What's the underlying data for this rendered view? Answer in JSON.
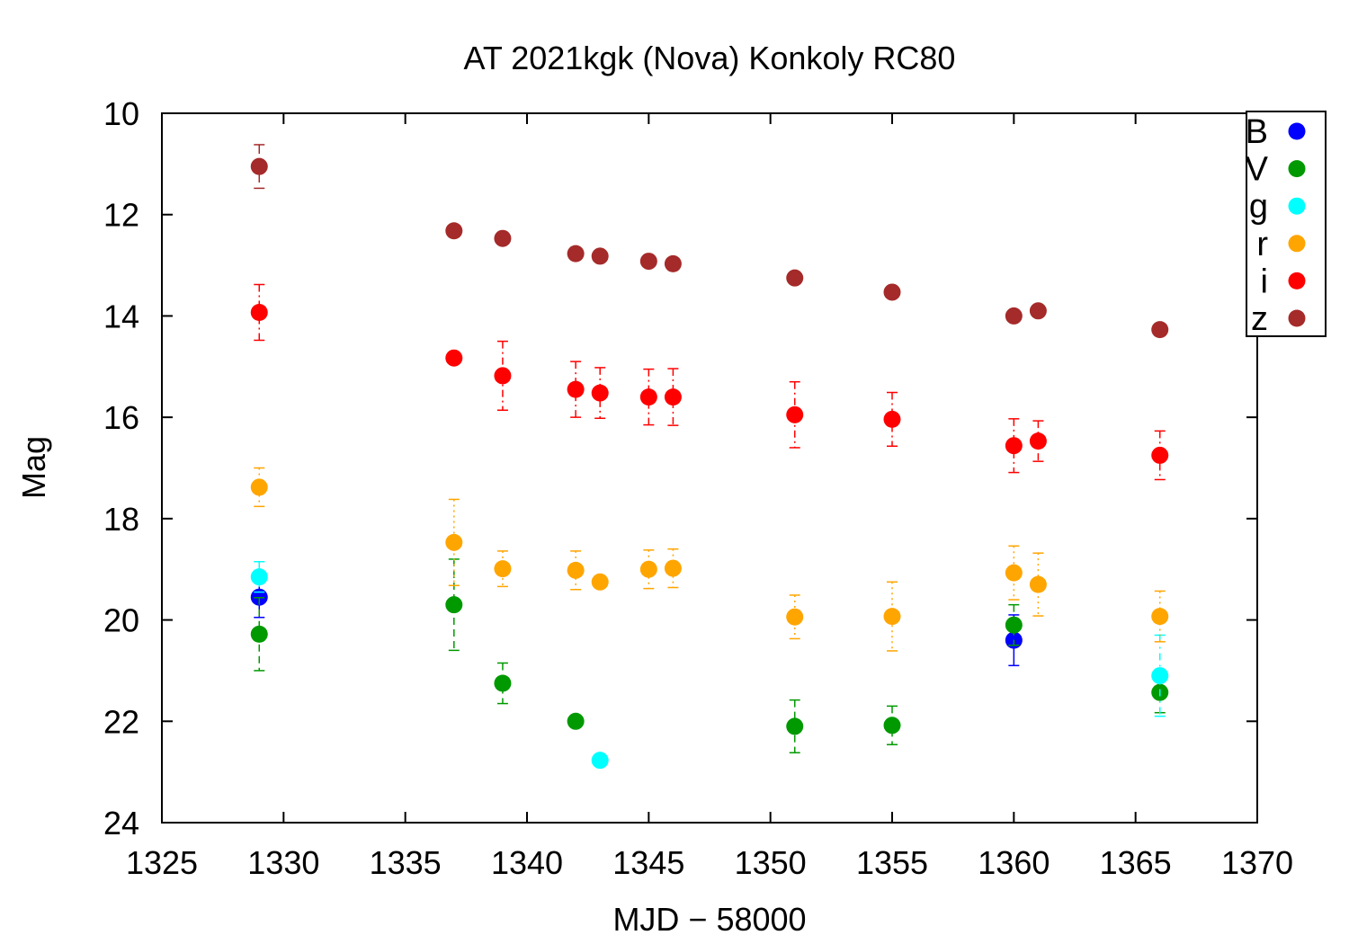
{
  "chart_data": {
    "type": "scatter",
    "title": "AT 2021kgk (Nova) Konkoly RC80",
    "xlabel": "MJD − 58000",
    "ylabel": "Mag",
    "xlim": [
      1325,
      1370
    ],
    "ylim": [
      10,
      24
    ],
    "y_inverted": true,
    "x_ticks": [
      1325,
      1330,
      1335,
      1340,
      1345,
      1350,
      1355,
      1360,
      1365,
      1370
    ],
    "y_ticks": [
      10,
      12,
      14,
      16,
      18,
      20,
      22,
      24
    ],
    "grid": false,
    "legend_position": "top-right",
    "series": [
      {
        "name": "B",
        "color": "#0000ff",
        "points": [
          {
            "x": 1329,
            "y": 19.55,
            "err": 0.4
          },
          {
            "x": 1360,
            "y": 20.4,
            "err": 0.5
          }
        ]
      },
      {
        "name": "V",
        "color": "#009900",
        "points": [
          {
            "x": 1329,
            "y": 20.28,
            "err": 0.72
          },
          {
            "x": 1337,
            "y": 19.7,
            "err": 0.9
          },
          {
            "x": 1339,
            "y": 21.25,
            "err": 0.4
          },
          {
            "x": 1342,
            "y": 22.0,
            "err": 0.1
          },
          {
            "x": 1351,
            "y": 22.1,
            "err": 0.52
          },
          {
            "x": 1355,
            "y": 22.08,
            "err": 0.38
          },
          {
            "x": 1360,
            "y": 20.1,
            "err": 0.4
          },
          {
            "x": 1366,
            "y": 21.43,
            "err": 0.4
          }
        ]
      },
      {
        "name": "g",
        "color": "#00ffff",
        "points": [
          {
            "x": 1329,
            "y": 19.15,
            "err": 0.3
          },
          {
            "x": 1343,
            "y": 22.77,
            "err": 0.05
          },
          {
            "x": 1366,
            "y": 21.1,
            "err": 0.8
          }
        ]
      },
      {
        "name": "r",
        "color": "#ffa500",
        "points": [
          {
            "x": 1329,
            "y": 17.38,
            "err": 0.38
          },
          {
            "x": 1337,
            "y": 18.47,
            "err": 0.85
          },
          {
            "x": 1339,
            "y": 18.99,
            "err": 0.35
          },
          {
            "x": 1342,
            "y": 19.02,
            "err": 0.38
          },
          {
            "x": 1343,
            "y": 19.25,
            "err": 0.1
          },
          {
            "x": 1345,
            "y": 19.0,
            "err": 0.38
          },
          {
            "x": 1346,
            "y": 18.98,
            "err": 0.38
          },
          {
            "x": 1351,
            "y": 19.94,
            "err": 0.43
          },
          {
            "x": 1355,
            "y": 19.93,
            "err": 0.68
          },
          {
            "x": 1360,
            "y": 19.07,
            "err": 0.53
          },
          {
            "x": 1361,
            "y": 19.3,
            "err": 0.62
          },
          {
            "x": 1366,
            "y": 19.93,
            "err": 0.5
          }
        ]
      },
      {
        "name": "i",
        "color": "#ff0000",
        "points": [
          {
            "x": 1329,
            "y": 13.93,
            "err": 0.55
          },
          {
            "x": 1337,
            "y": 14.83,
            "err": 0.05
          },
          {
            "x": 1339,
            "y": 15.18,
            "err": 0.68
          },
          {
            "x": 1342,
            "y": 15.45,
            "err": 0.55
          },
          {
            "x": 1343,
            "y": 15.52,
            "err": 0.5
          },
          {
            "x": 1345,
            "y": 15.6,
            "err": 0.55
          },
          {
            "x": 1346,
            "y": 15.6,
            "err": 0.56
          },
          {
            "x": 1351,
            "y": 15.95,
            "err": 0.65
          },
          {
            "x": 1355,
            "y": 16.04,
            "err": 0.53
          },
          {
            "x": 1360,
            "y": 16.56,
            "err": 0.53
          },
          {
            "x": 1361,
            "y": 16.47,
            "err": 0.4
          },
          {
            "x": 1366,
            "y": 16.75,
            "err": 0.48
          }
        ]
      },
      {
        "name": "z",
        "color": "#a52a2a",
        "points": [
          {
            "x": 1329,
            "y": 11.05,
            "err": 0.43
          },
          {
            "x": 1337,
            "y": 12.32,
            "err": 0
          },
          {
            "x": 1339,
            "y": 12.47,
            "err": 0
          },
          {
            "x": 1342,
            "y": 12.77,
            "err": 0
          },
          {
            "x": 1343,
            "y": 12.82,
            "err": 0
          },
          {
            "x": 1345,
            "y": 12.92,
            "err": 0
          },
          {
            "x": 1346,
            "y": 12.97,
            "err": 0
          },
          {
            "x": 1351,
            "y": 13.25,
            "err": 0
          },
          {
            "x": 1355,
            "y": 13.53,
            "err": 0
          },
          {
            "x": 1360,
            "y": 14.0,
            "err": 0
          },
          {
            "x": 1361,
            "y": 13.9,
            "err": 0
          },
          {
            "x": 1366,
            "y": 14.27,
            "err": 0
          }
        ]
      }
    ]
  }
}
